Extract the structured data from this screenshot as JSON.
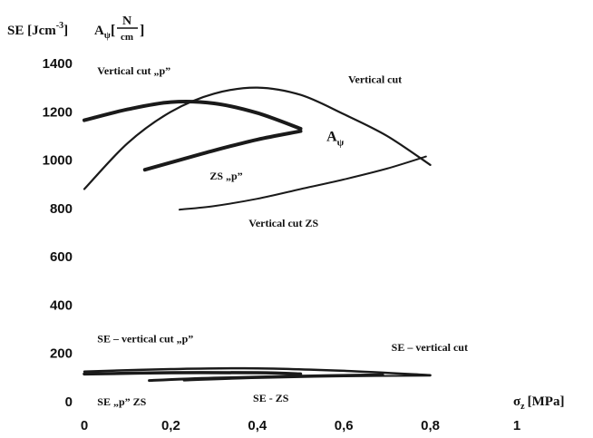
{
  "chart_data": {
    "type": "line",
    "ylabel": {
      "se": "SE [Jcm",
      "se_exp": "-3",
      "se_close": "]",
      "a": "A",
      "a_sub": "ψ",
      "frac_num": "N",
      "frac_den": "cm"
    },
    "xlabel": {
      "sigma": "σ",
      "sigma_sub": "z",
      "unit": "[MPa]"
    },
    "xlim": [
      0,
      1
    ],
    "ylim": [
      0,
      1400
    ],
    "x_ticks": [
      {
        "value": 0,
        "label": "0"
      },
      {
        "value": 0.2,
        "label": "0,2"
      },
      {
        "value": 0.4,
        "label": "0,4"
      },
      {
        "value": 0.6,
        "label": "0,6"
      },
      {
        "value": 0.8,
        "label": "0,8"
      },
      {
        "value": 1,
        "label": "1"
      }
    ],
    "y_ticks": [
      {
        "value": 0,
        "label": "0"
      },
      {
        "value": 200,
        "label": "200"
      },
      {
        "value": 400,
        "label": "400"
      },
      {
        "value": 600,
        "label": "600"
      },
      {
        "value": 800,
        "label": "800"
      },
      {
        "value": 1000,
        "label": "1000"
      },
      {
        "value": 1200,
        "label": "1200"
      },
      {
        "value": 1400,
        "label": "1400"
      }
    ],
    "grid": false,
    "series": [
      {
        "key": "vertical-cut",
        "name": "Vertical cut",
        "width": 2.2,
        "x": [
          0,
          0.1,
          0.2,
          0.3,
          0.4,
          0.5,
          0.6,
          0.7,
          0.8
        ],
        "y": [
          880,
          1070,
          1200,
          1275,
          1300,
          1270,
          1190,
          1100,
          980
        ]
      },
      {
        "key": "vertical-cut-p",
        "name": "Vertical cut „p”",
        "width": 4,
        "x": [
          0,
          0.1,
          0.2,
          0.3,
          0.4,
          0.5
        ],
        "y": [
          1165,
          1210,
          1240,
          1235,
          1195,
          1130
        ]
      },
      {
        "key": "zs-p",
        "name": "ZS „p”",
        "width": 4,
        "x": [
          0.14,
          0.2,
          0.3,
          0.4,
          0.5
        ],
        "y": [
          960,
          990,
          1040,
          1085,
          1120
        ]
      },
      {
        "key": "vertical-cut-zs",
        "name": "Vertical cut ZS",
        "width": 2,
        "x": [
          0.22,
          0.3,
          0.4,
          0.5,
          0.6,
          0.7,
          0.79
        ],
        "y": [
          795,
          810,
          840,
          880,
          920,
          965,
          1015
        ]
      },
      {
        "key": "se-vertical-cut",
        "name": "SE – vertical cut",
        "width": 2.5,
        "x": [
          0,
          0.2,
          0.4,
          0.6,
          0.8
        ],
        "y": [
          125,
          135,
          138,
          128,
          110
        ]
      },
      {
        "key": "se-vertical-cut-p",
        "name": "SE – vertical cut „p”",
        "width": 3.5,
        "x": [
          0,
          0.2,
          0.4,
          0.5
        ],
        "y": [
          115,
          120,
          120,
          115
        ]
      },
      {
        "key": "se-p-zs",
        "name": "SE „p” ZS",
        "width": 3,
        "x": [
          0.15,
          0.3,
          0.5,
          0.69
        ],
        "y": [
          88,
          98,
          106,
          112
        ]
      },
      {
        "key": "se-zs",
        "name": "SE - ZS",
        "width": 2,
        "x": [
          0.23,
          0.4,
          0.6,
          0.8
        ],
        "y": [
          88,
          98,
          105,
          108
        ]
      }
    ],
    "annotations": [
      {
        "key": "ann-vertical-cut-p",
        "text": "Vertical cut „p”",
        "x": 0.03,
        "y": 1355,
        "size": 12
      },
      {
        "key": "ann-vertical-cut",
        "text": "Vertical cut",
        "x": 0.61,
        "y": 1320,
        "size": 12
      },
      {
        "key": "ann-zs-p",
        "text": "ZS „p”",
        "x": 0.29,
        "y": 920,
        "size": 12
      },
      {
        "key": "ann-vertical-cut-zs",
        "text": "Vertical cut ZS",
        "x": 0.38,
        "y": 725,
        "size": 12
      },
      {
        "key": "ann-se-vertical-cut-p",
        "text": "SE – vertical cut „p”",
        "x": 0.03,
        "y": 245,
        "size": 12
      },
      {
        "key": "ann-se-vertical-cut",
        "text": "SE – vertical cut",
        "x": 0.71,
        "y": 210,
        "size": 12
      },
      {
        "key": "ann-se-p-zs",
        "text": "SE „p” ZS",
        "x": 0.03,
        "y": -15,
        "size": 12
      },
      {
        "key": "ann-se-zs",
        "text": "SE - ZS",
        "x": 0.39,
        "y": 0,
        "size": 12
      }
    ],
    "a_label": {
      "text": "A",
      "sub": "ψ",
      "x": 0.56,
      "y": 1080
    }
  }
}
